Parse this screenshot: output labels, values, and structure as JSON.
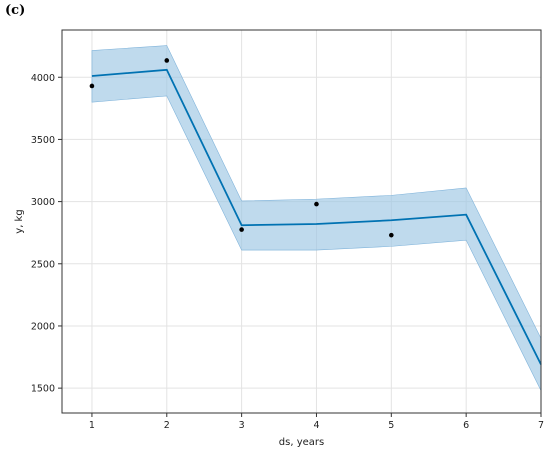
{
  "panel_label": "(c)",
  "chart_data": {
    "type": "line",
    "title": "",
    "xlabel": "ds, years",
    "ylabel": "y, kg",
    "xlim": [
      0.6,
      7
    ],
    "ylim": [
      1300,
      4380
    ],
    "grid": true,
    "x_ticks": [
      1,
      2,
      3,
      4,
      5,
      6,
      7
    ],
    "y_ticks": [
      1500,
      2000,
      2500,
      3000,
      3500,
      4000
    ],
    "series": [
      {
        "kind": "forecast",
        "x": [
          1,
          2,
          3,
          4,
          5,
          6,
          7
        ],
        "values": [
          4010,
          4060,
          2810,
          2820,
          2850,
          2895,
          1690
        ],
        "lower": [
          3800,
          3850,
          2610,
          2610,
          2640,
          2690,
          1480
        ],
        "upper": [
          4215,
          4255,
          3005,
          3020,
          3050,
          3110,
          1900
        ],
        "color": "#0072b2",
        "band_color": "#9cc6e4"
      },
      {
        "kind": "observed",
        "x": [
          1,
          2,
          3,
          4,
          5
        ],
        "values": [
          3930,
          4135,
          2775,
          2980,
          2730
        ],
        "color": "#000000"
      }
    ]
  }
}
